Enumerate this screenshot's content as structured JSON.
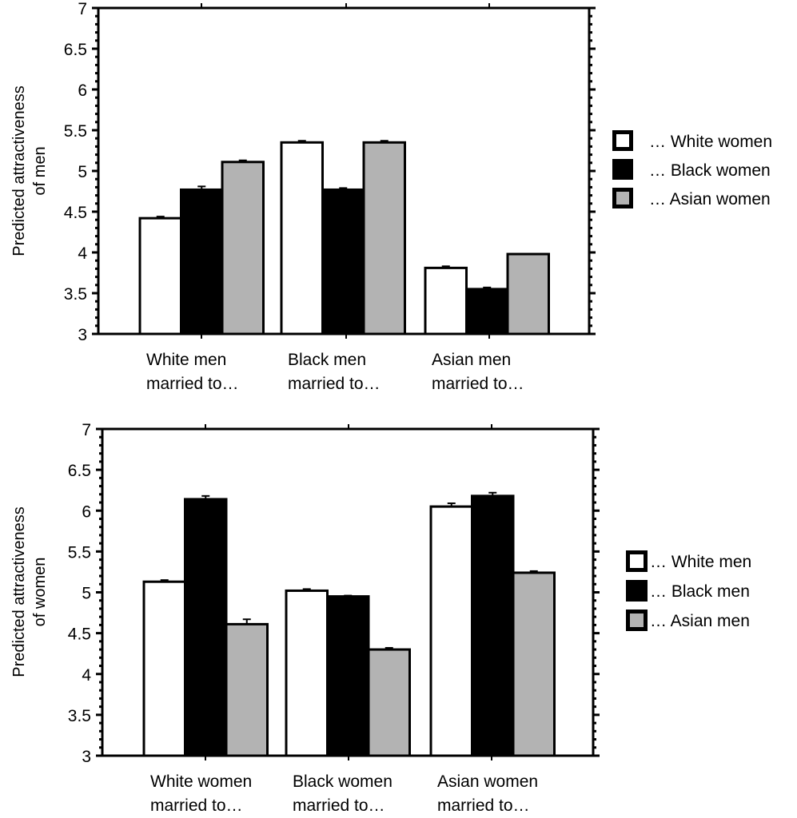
{
  "chart_data": [
    {
      "type": "bar",
      "id": "men",
      "title": "",
      "ylabel": [
        "Predicted attractiveness",
        "of men"
      ],
      "xlabel": "",
      "ylim": [
        3,
        7
      ],
      "yticks": [
        "3",
        "3.5",
        "4",
        "4.5",
        "5",
        "5.5",
        "6",
        "6.5",
        "7"
      ],
      "ytick_values": [
        3,
        3.5,
        4,
        4.5,
        5,
        5.5,
        6,
        6.5,
        7
      ],
      "minor_tick_step": 0.1,
      "grid": false,
      "legend_position": "right",
      "categories": [
        [
          "White men",
          "married to…"
        ],
        [
          "Black men",
          "married to…"
        ],
        [
          "Asian men",
          "married to…"
        ]
      ],
      "series": [
        {
          "name": "… White women",
          "color": "#ffffff",
          "values": [
            4.42,
            5.35,
            3.81
          ],
          "errors": [
            0.02,
            0.02,
            0.02
          ]
        },
        {
          "name": "… Black women",
          "color": "#000000",
          "values": [
            4.77,
            4.77,
            3.55
          ],
          "errors": [
            0.04,
            0.02,
            0.02
          ]
        },
        {
          "name": "… Asian women",
          "color": "#b3b3b3",
          "values": [
            5.11,
            5.35,
            3.98
          ],
          "errors": [
            0.02,
            0.02,
            0.0
          ]
        }
      ]
    },
    {
      "type": "bar",
      "id": "women",
      "title": "",
      "ylabel": [
        "Predicted attractiveness",
        "of women"
      ],
      "xlabel": "",
      "ylim": [
        3,
        7
      ],
      "yticks": [
        "3",
        "3.5",
        "4",
        "4.5",
        "5",
        "5.5",
        "6",
        "6.5",
        "7"
      ],
      "ytick_values": [
        3,
        3.5,
        4,
        4.5,
        5,
        5.5,
        6,
        6.5,
        7
      ],
      "minor_tick_step": 0.1,
      "grid": false,
      "legend_position": "right",
      "categories": [
        [
          "White women",
          "married to…"
        ],
        [
          "Black women",
          "married to…"
        ],
        [
          "Asian women",
          "married to…"
        ]
      ],
      "series": [
        {
          "name": "… White men",
          "color": "#ffffff",
          "values": [
            5.13,
            5.02,
            6.05
          ],
          "errors": [
            0.02,
            0.02,
            0.04
          ]
        },
        {
          "name": "… Black men",
          "color": "#000000",
          "values": [
            6.14,
            4.95,
            6.18
          ],
          "errors": [
            0.04,
            0.01,
            0.04
          ]
        },
        {
          "name": "… Asian men",
          "color": "#b3b3b3",
          "values": [
            4.61,
            4.3,
            5.24
          ],
          "errors": [
            0.06,
            0.02,
            0.02
          ]
        }
      ]
    }
  ]
}
